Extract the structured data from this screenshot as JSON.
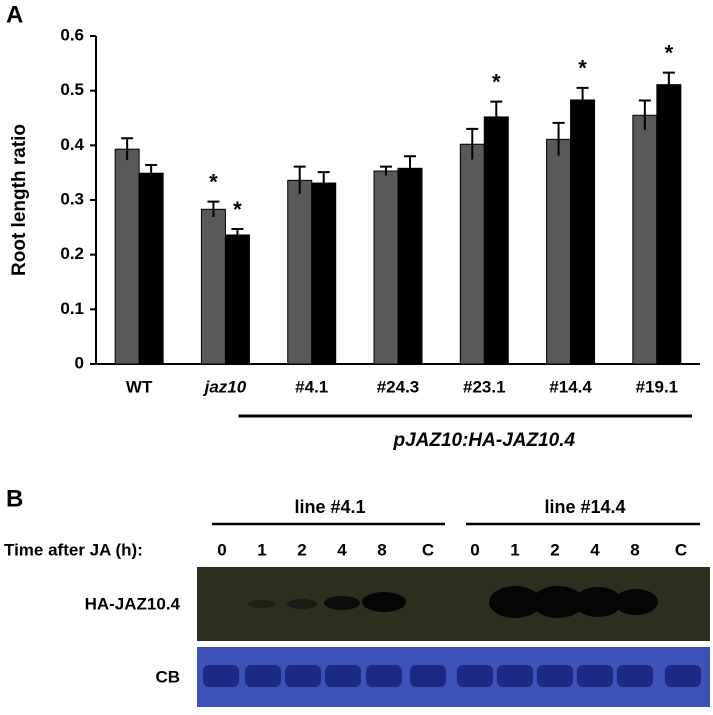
{
  "chart_data": {
    "type": "bar",
    "panel_label": "A",
    "ylabel": "Root length ratio",
    "categories": [
      "WT",
      "jaz10",
      "#4.1",
      "#24.3",
      "#23.1",
      "#14.4",
      "#19.1"
    ],
    "group_label": "pJAZ10:HA-JAZ10.4",
    "series": [
      {
        "color": "#595959",
        "values": [
          0.393,
          0.283,
          0.336,
          0.353,
          0.402,
          0.411,
          0.455
        ],
        "errors": [
          0.02,
          0.014,
          0.025,
          0.008,
          0.028,
          0.03,
          0.027
        ],
        "annotations": [
          null,
          "*",
          null,
          null,
          null,
          null,
          null
        ]
      },
      {
        "color": "#000000",
        "values": [
          0.349,
          0.236,
          0.331,
          0.358,
          0.452,
          0.483,
          0.511
        ],
        "errors": [
          0.015,
          0.011,
          0.02,
          0.022,
          0.028,
          0.022,
          0.022
        ],
        "annotations": [
          null,
          "*",
          null,
          null,
          "*",
          "*",
          "*"
        ]
      }
    ],
    "ylim": [
      0,
      0.6
    ],
    "yticks": [
      0,
      0.1,
      0.2,
      0.3,
      0.4,
      0.5,
      0.6
    ]
  },
  "blot": {
    "panel_label": "B",
    "time_label": "Time after JA (h):",
    "lines": [
      {
        "label": "line #4.1",
        "lanes": [
          "0",
          "1",
          "2",
          "4",
          "8",
          "C"
        ]
      },
      {
        "label": "line #14.4",
        "lanes": [
          "0",
          "1",
          "2",
          "4",
          "8",
          "C"
        ]
      }
    ],
    "rows": [
      "HA-JAZ10.4",
      "CB"
    ]
  }
}
